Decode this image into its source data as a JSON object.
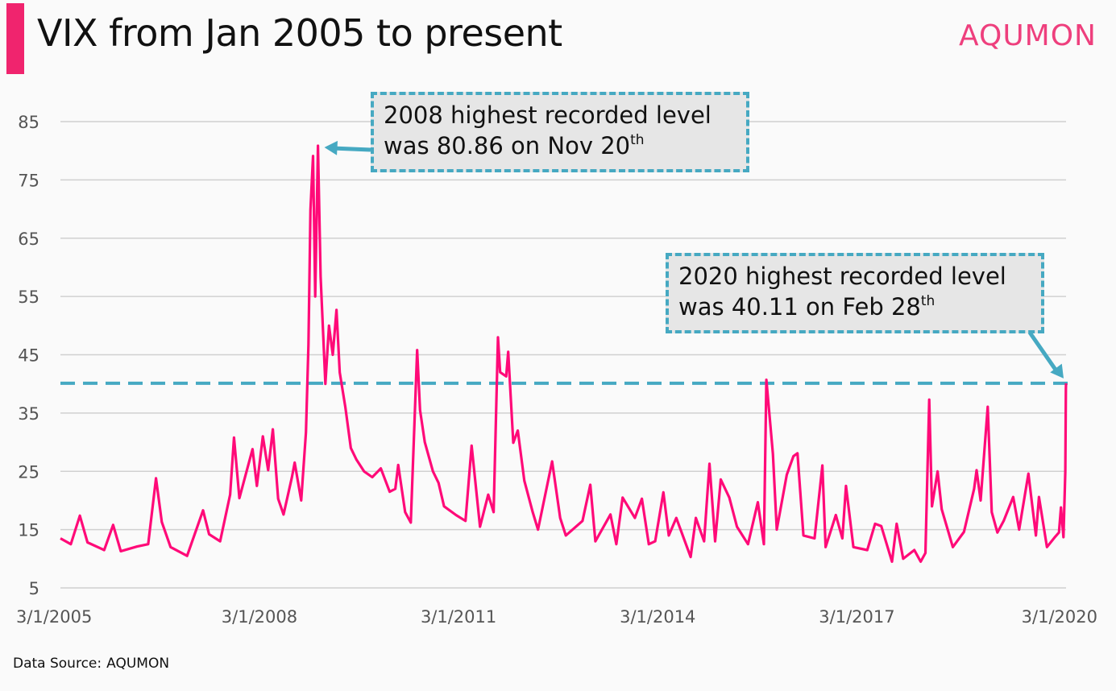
{
  "title": "VIX from Jan 2005 to present",
  "brand": "AQUMON",
  "source": {
    "label": "Data Source:",
    "name": "AQUMON"
  },
  "colors": {
    "series": "#ff0a78",
    "accent": "#46a9c2",
    "title_bar": "#f0246e",
    "brand": "#ee3f7d",
    "grid": "#d0d0d0"
  },
  "annotations": [
    {
      "line1": "2008 highest recorded level",
      "line2_text": "was 80.86 on Nov 20",
      "line2_sup": "th"
    },
    {
      "line1": "2020 highest recorded level",
      "line2_text": "was 40.11 on Feb 28",
      "line2_sup": "th"
    }
  ],
  "chart_data": {
    "type": "line",
    "title": "VIX from Jan 2005 to present",
    "xlabel": "",
    "ylabel": "",
    "ylim": [
      5,
      85
    ],
    "yticks": [
      5,
      15,
      25,
      35,
      45,
      55,
      65,
      75,
      85
    ],
    "xlim": [
      "2005-01-03",
      "2020-02-28"
    ],
    "xtick_labels": [
      "3/1/2005",
      "3/1/2008",
      "3/1/2011",
      "3/1/2014",
      "3/1/2017",
      "3/1/2020"
    ],
    "xtick_dates": [
      "2005-01-03",
      "2008-01-03",
      "2011-01-03",
      "2014-01-03",
      "2017-01-03",
      "2020-01-03"
    ],
    "grid": true,
    "reference_line": {
      "y": 40.11,
      "style": "dashed"
    },
    "series": [
      {
        "x": [
          "2005-01-03",
          "2005-03-01",
          "2005-04-20",
          "2005-06-01",
          "2005-09-01",
          "2005-10-20",
          "2005-12-01",
          "2006-03-01",
          "2006-05-01",
          "2006-06-13",
          "2006-07-15",
          "2006-09-01",
          "2006-12-01",
          "2007-02-27",
          "2007-04-01",
          "2007-06-01",
          "2007-07-26",
          "2007-08-16",
          "2007-09-15",
          "2007-11-26",
          "2007-12-20",
          "2008-01-22",
          "2008-02-20",
          "2008-03-17",
          "2008-04-15",
          "2008-05-15",
          "2008-06-30",
          "2008-07-15",
          "2008-08-20",
          "2008-09-15",
          "2008-09-29",
          "2008-10-10",
          "2008-10-24",
          "2008-11-05",
          "2008-11-20",
          "2008-12-05",
          "2008-12-31",
          "2009-01-20",
          "2009-02-10",
          "2009-03-02",
          "2009-03-20",
          "2009-04-20",
          "2009-05-20",
          "2009-06-20",
          "2009-08-01",
          "2009-09-15",
          "2009-11-01",
          "2009-12-20",
          "2010-01-20",
          "2010-02-05",
          "2010-03-15",
          "2010-04-15",
          "2010-05-20",
          "2010-06-05",
          "2010-07-01",
          "2010-08-15",
          "2010-09-15",
          "2010-10-15",
          "2010-12-20",
          "2011-02-10",
          "2011-03-16",
          "2011-05-01",
          "2011-06-15",
          "2011-07-15",
          "2011-08-08",
          "2011-08-20",
          "2011-09-22",
          "2011-10-03",
          "2011-10-31",
          "2011-11-25",
          "2011-12-31",
          "2012-02-15",
          "2012-03-15",
          "2012-06-01",
          "2012-07-15",
          "2012-08-15",
          "2012-11-15",
          "2012-12-28",
          "2013-01-25",
          "2013-04-18",
          "2013-05-20",
          "2013-06-24",
          "2013-08-30",
          "2013-10-08",
          "2013-11-15",
          "2013-12-20",
          "2014-02-03",
          "2014-03-05",
          "2014-04-15",
          "2014-07-03",
          "2014-08-01",
          "2014-09-15",
          "2014-10-15",
          "2014-11-15",
          "2014-12-16",
          "2015-02-01",
          "2015-03-15",
          "2015-05-15",
          "2015-07-08",
          "2015-08-10",
          "2015-08-24",
          "2015-09-29",
          "2015-10-20",
          "2015-12-14",
          "2016-01-20",
          "2016-02-11",
          "2016-03-15",
          "2016-05-15",
          "2016-06-27",
          "2016-07-15",
          "2016-09-09",
          "2016-10-15",
          "2016-11-04",
          "2016-12-15",
          "2017-03-01",
          "2017-04-13",
          "2017-05-17",
          "2017-07-15",
          "2017-08-10",
          "2017-09-15",
          "2017-11-15",
          "2017-12-20",
          "2018-01-15",
          "2018-02-05",
          "2018-02-20",
          "2018-03-23",
          "2018-04-15",
          "2018-06-15",
          "2018-08-15",
          "2018-10-10",
          "2018-10-24",
          "2018-11-15",
          "2018-12-24",
          "2019-01-15",
          "2019-02-15",
          "2019-03-22",
          "2019-05-13",
          "2019-06-15",
          "2019-08-05",
          "2019-08-23",
          "2019-09-15",
          "2019-10-02",
          "2019-11-15",
          "2019-12-31",
          "2020-01-20",
          "2020-01-31",
          "2020-02-14",
          "2020-02-24",
          "2020-02-27",
          "2020-02-28"
        ],
        "y": [
          13.5,
          12.5,
          17.4,
          12.8,
          11.5,
          15.8,
          11.3,
          12.1,
          12.5,
          23.8,
          16.3,
          12.0,
          10.5,
          18.3,
          14.2,
          13.0,
          21.0,
          30.8,
          20.4,
          28.8,
          22.5,
          31.0,
          25.2,
          32.2,
          20.3,
          17.6,
          24.0,
          26.5,
          20.0,
          31.7,
          46.7,
          69.9,
          79.1,
          55.0,
          80.86,
          58.4,
          40.0,
          50.0,
          45.0,
          52.7,
          42.0,
          36.0,
          29.0,
          27.0,
          25.0,
          24.0,
          25.5,
          21.5,
          22.0,
          26.1,
          18.0,
          16.2,
          45.8,
          35.5,
          30.0,
          25.0,
          23.0,
          19.0,
          17.5,
          16.5,
          29.4,
          15.5,
          21.0,
          18.0,
          48.0,
          42.0,
          41.3,
          45.5,
          29.9,
          32.0,
          23.4,
          18.0,
          15.0,
          26.7,
          17.0,
          14.0,
          16.5,
          22.7,
          13.0,
          17.6,
          12.5,
          20.5,
          17.0,
          20.3,
          12.5,
          13.0,
          21.4,
          14.0,
          17.0,
          10.3,
          17.0,
          13.0,
          26.3,
          13.0,
          23.6,
          20.5,
          15.5,
          12.5,
          19.7,
          12.5,
          40.7,
          28.0,
          15.0,
          24.4,
          27.6,
          28.1,
          14.0,
          13.5,
          26.0,
          12.0,
          17.5,
          13.5,
          22.5,
          12.0,
          11.5,
          16.0,
          15.6,
          9.5,
          16.0,
          10.0,
          11.5,
          9.5,
          11.0,
          37.3,
          19.0,
          25.0,
          18.5,
          12.0,
          14.6,
          22.0,
          25.2,
          20.0,
          36.07,
          18.0,
          14.5,
          16.5,
          20.6,
          15.0,
          24.6,
          19.9,
          14.0,
          20.6,
          12.0,
          13.8,
          14.5,
          18.8,
          13.7,
          25.0,
          39.16,
          40.11
        ]
      }
    ]
  }
}
